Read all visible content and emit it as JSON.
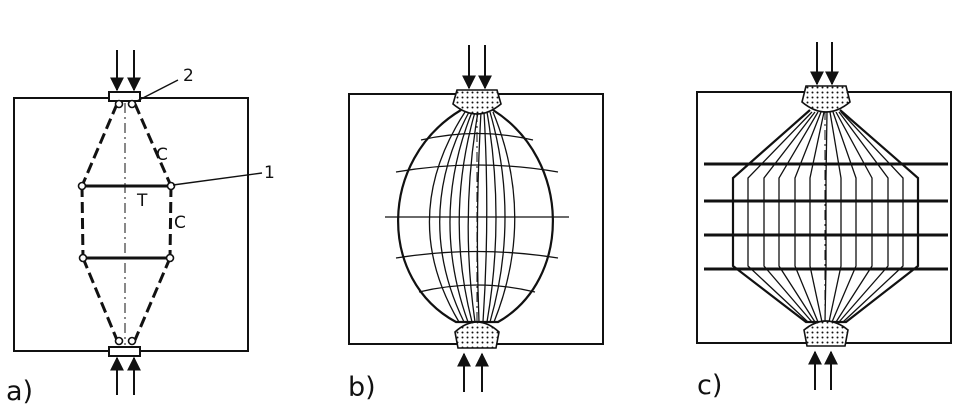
{
  "panels": [
    {
      "label": "a)",
      "annotations": {
        "callout_1": "1",
        "callout_2": "2",
        "c_upper": "C",
        "c_right": "C",
        "tie": "T"
      }
    },
    {
      "label": "b)"
    },
    {
      "label": "c)"
    }
  ],
  "style": {
    "ink": "#111111",
    "paper": "#ffffff"
  }
}
